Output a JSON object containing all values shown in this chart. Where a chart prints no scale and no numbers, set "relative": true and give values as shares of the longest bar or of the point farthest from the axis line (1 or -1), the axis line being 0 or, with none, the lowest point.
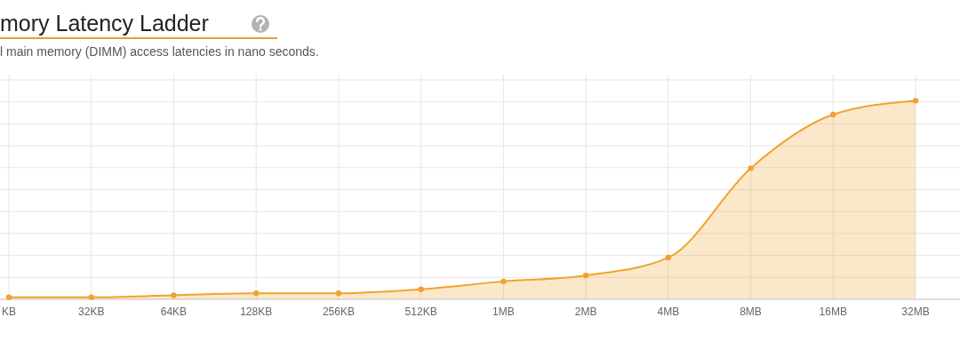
{
  "chart_data": {
    "type": "area",
    "title": "mory Latency Ladder",
    "subtitle": "l main memory (DIMM) access latencies in nano seconds.",
    "categories": [
      "KB",
      "32KB",
      "64KB",
      "128KB",
      "256KB",
      "512KB",
      "1MB",
      "2MB",
      "4MB",
      "8MB",
      "16MB",
      "32MB"
    ],
    "values": [
      0.01,
      0.01,
      0.02,
      0.03,
      0.03,
      0.05,
      0.09,
      0.12,
      0.21,
      0.66,
      0.93,
      1
    ],
    "color": "#f0a32f",
    "relative": true,
    "grid": true,
    "marker": "circle"
  }
}
